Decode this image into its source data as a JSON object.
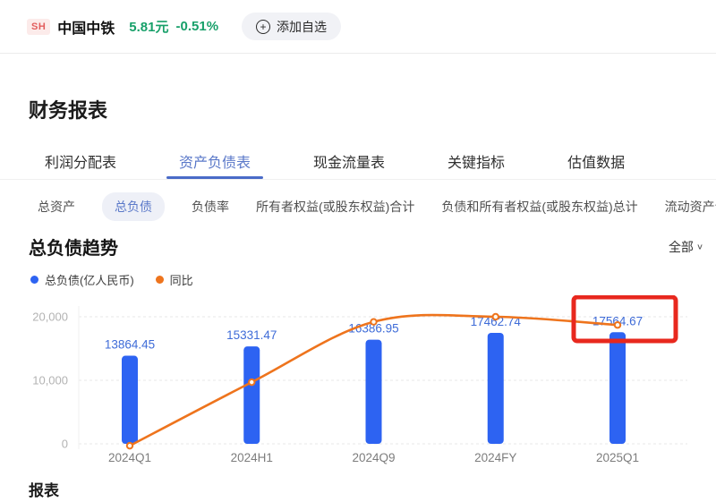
{
  "stock_bar": {
    "exchange_badge": "SH",
    "name": "中国中铁",
    "price": "5.81元",
    "change": "-0.51%",
    "add_watchlist_label": "添加自选",
    "plus_glyph": "+",
    "price_color": "#18a06a",
    "badge_color": "#e25d5d"
  },
  "fin_section": {
    "title": "财务报表"
  },
  "tabs": {
    "items": [
      {
        "label": "利润分配表"
      },
      {
        "label": "资产负债表"
      },
      {
        "label": "现金流量表"
      },
      {
        "label": "关键指标"
      },
      {
        "label": "估值数据"
      }
    ],
    "active": "资产负债表"
  },
  "subtabs": {
    "items": [
      {
        "label": "总资产"
      },
      {
        "label": "总负债"
      },
      {
        "label": "负债率"
      },
      {
        "label": "所有者权益(或股东权益)合计"
      },
      {
        "label": "负债和所有者权益(或股东权益)总计"
      },
      {
        "label": "流动资产合计"
      }
    ],
    "selected": "总负债"
  },
  "trend": {
    "title": "总负债趋势",
    "range_label": "全部",
    "chevron": "∨"
  },
  "legend": {
    "items": [
      {
        "label": "总负债(亿人民币)",
        "color": "#2d63f2"
      },
      {
        "label": "同比",
        "color": "#ee741d"
      }
    ]
  },
  "chart_data": {
    "type": "bar",
    "title": "总负债趋势",
    "categories": [
      "2024Q1",
      "2024H1",
      "2024Q9",
      "2024FY",
      "2025Q1"
    ],
    "series": [
      {
        "name": "总负债(亿人民币)",
        "type": "bar",
        "values": [
          13864.45,
          15331.47,
          16386.95,
          17462.74,
          17564.67
        ],
        "color": "#2d63f2"
      },
      {
        "name": "同比",
        "type": "line",
        "plotted_values_left_axis_estimate": [
          -300,
          9700,
          19200,
          20000,
          18700
        ],
        "color": "#ee741d"
      }
    ],
    "value_labels": [
      "13864.45",
      "15331.47",
      "16386.95",
      "17462.74",
      "17564.67"
    ],
    "value_label_color": "#3f6cd8",
    "y_ticks": [
      0,
      10000,
      20000
    ],
    "y_tick_labels": [
      "0",
      "10,000",
      "20,000"
    ],
    "ylim": [
      0,
      20000
    ],
    "grid": "dashed-horizontal",
    "legend_position": "top-left",
    "highlight": {
      "category": "2025Q1",
      "label": "17564.67",
      "box_color": "#e8281e"
    }
  },
  "footer": {
    "label": "报表"
  }
}
